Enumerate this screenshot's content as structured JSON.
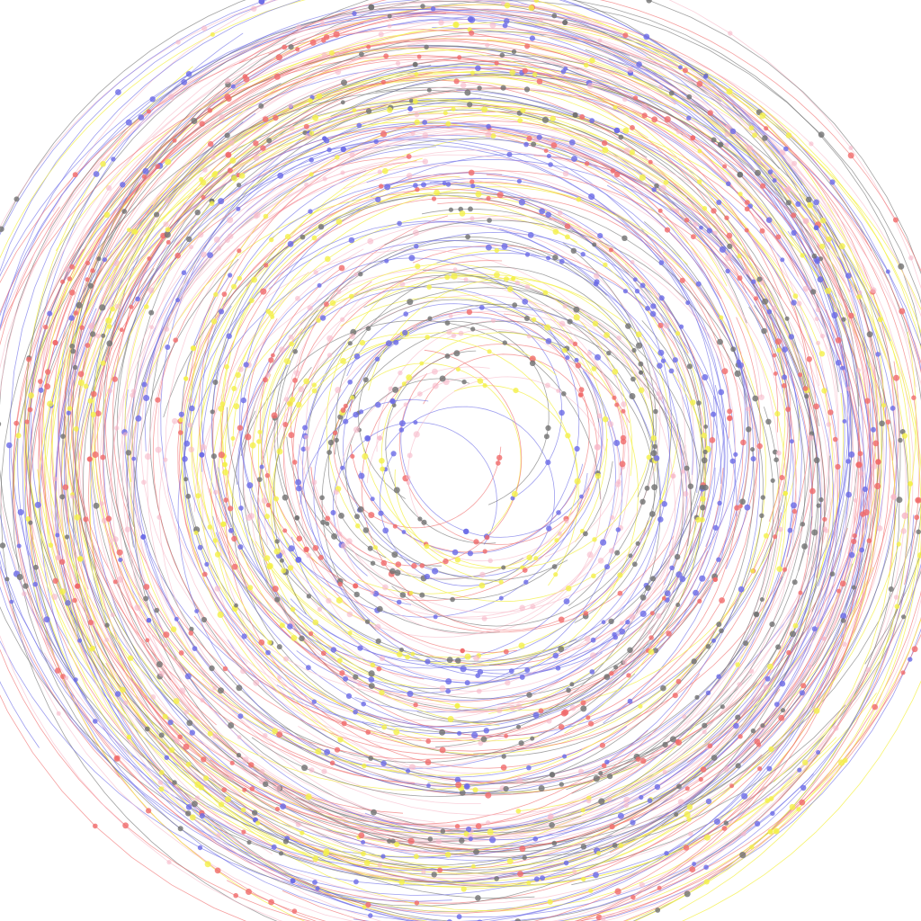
{
  "artwork": {
    "background_color": "#ffffff",
    "palette": {
      "red": "#f06a6a",
      "blue": "#6a6ae6",
      "yellow": "#f4f04a",
      "gray": "#707070",
      "pink": "#f7b8c8"
    },
    "strand_colors": [
      "red",
      "blue",
      "yellow",
      "gray",
      "pink"
    ],
    "strand_count": 320,
    "dots_per_strand": 6,
    "motif": "concentric-swirl",
    "center_region": "empty"
  }
}
